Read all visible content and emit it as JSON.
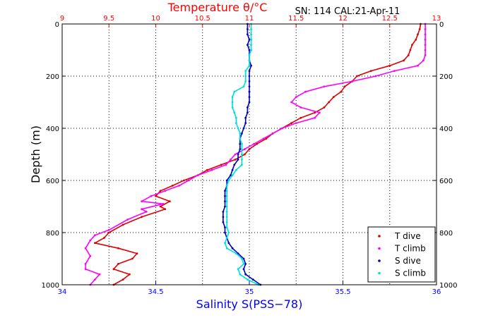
{
  "chart_data": {
    "type": "line",
    "header_info": "SN: 114  CAL:21-Apr-11",
    "temperature_axis": {
      "title": "Temperature θ/°C",
      "min": 9,
      "max": 13,
      "ticks": [
        "9",
        "9.5",
        "10",
        "10.5",
        "11",
        "11.5",
        "12",
        "12.5",
        "13"
      ],
      "color": "#ff0000"
    },
    "salinity_axis": {
      "title": "Salinity S(PSS−78)",
      "min": 34,
      "max": 36,
      "ticks": [
        "34",
        "34.5",
        "35",
        "35.5",
        "36"
      ],
      "color": "#0000ff"
    },
    "depth_axis": {
      "title": "Depth (m)",
      "min": 0,
      "max": 1000,
      "ticks": [
        "0",
        "200",
        "400",
        "600",
        "800",
        "1000"
      ],
      "inverted": true
    },
    "grid": true,
    "legend_position": "bottom-right",
    "series": [
      {
        "name": "T dive",
        "axis": "temperature",
        "color": "#dd0000",
        "marker": "dot",
        "points": [
          [
            12.83,
            0
          ],
          [
            12.82,
            20
          ],
          [
            12.8,
            40
          ],
          [
            12.78,
            60
          ],
          [
            12.74,
            80
          ],
          [
            12.72,
            100
          ],
          [
            12.7,
            120
          ],
          [
            12.65,
            140
          ],
          [
            12.5,
            160
          ],
          [
            12.3,
            180
          ],
          [
            12.15,
            200
          ],
          [
            12.1,
            220
          ],
          [
            12.02,
            240
          ],
          [
            11.98,
            260
          ],
          [
            11.9,
            280
          ],
          [
            11.85,
            300
          ],
          [
            11.8,
            320
          ],
          [
            11.7,
            340
          ],
          [
            11.55,
            360
          ],
          [
            11.45,
            380
          ],
          [
            11.35,
            400
          ],
          [
            11.25,
            420
          ],
          [
            11.18,
            440
          ],
          [
            11.08,
            460
          ],
          [
            11.0,
            480
          ],
          [
            10.95,
            500
          ],
          [
            10.85,
            520
          ],
          [
            10.7,
            540
          ],
          [
            10.55,
            560
          ],
          [
            10.45,
            580
          ],
          [
            10.3,
            600
          ],
          [
            10.18,
            620
          ],
          [
            10.05,
            640
          ],
          [
            10.0,
            660
          ],
          [
            10.15,
            680
          ],
          [
            10.05,
            700
          ],
          [
            10.1,
            710
          ],
          [
            9.85,
            740
          ],
          [
            9.65,
            770
          ],
          [
            9.5,
            800
          ],
          [
            9.45,
            820
          ],
          [
            9.35,
            840
          ],
          [
            9.6,
            860
          ],
          [
            9.8,
            880
          ],
          [
            9.75,
            900
          ],
          [
            9.6,
            920
          ],
          [
            9.55,
            940
          ],
          [
            9.72,
            960
          ],
          [
            9.65,
            980
          ],
          [
            9.55,
            1000
          ]
        ]
      },
      {
        "name": "T climb",
        "axis": "temperature",
        "color": "#ff00ff",
        "marker": "dot",
        "points": [
          [
            12.88,
            0
          ],
          [
            12.88,
            20
          ],
          [
            12.88,
            40
          ],
          [
            12.88,
            60
          ],
          [
            12.88,
            80
          ],
          [
            12.88,
            100
          ],
          [
            12.88,
            120
          ],
          [
            12.86,
            140
          ],
          [
            12.8,
            160
          ],
          [
            12.55,
            180
          ],
          [
            12.35,
            200
          ],
          [
            12.1,
            220
          ],
          [
            11.8,
            240
          ],
          [
            11.6,
            260
          ],
          [
            11.5,
            280
          ],
          [
            11.45,
            300
          ],
          [
            11.55,
            320
          ],
          [
            11.75,
            340
          ],
          [
            11.7,
            360
          ],
          [
            11.5,
            380
          ],
          [
            11.35,
            400
          ],
          [
            11.25,
            420
          ],
          [
            11.15,
            440
          ],
          [
            11.05,
            460
          ],
          [
            10.95,
            480
          ],
          [
            10.85,
            500
          ],
          [
            10.8,
            520
          ],
          [
            10.75,
            540
          ],
          [
            10.6,
            560
          ],
          [
            10.45,
            580
          ],
          [
            10.35,
            600
          ],
          [
            10.25,
            620
          ],
          [
            10.1,
            640
          ],
          [
            9.95,
            660
          ],
          [
            9.85,
            680
          ],
          [
            10.08,
            690
          ],
          [
            9.85,
            710
          ],
          [
            9.9,
            720
          ],
          [
            9.7,
            750
          ],
          [
            9.5,
            790
          ],
          [
            9.35,
            810
          ],
          [
            9.3,
            830
          ],
          [
            9.25,
            860
          ],
          [
            9.3,
            890
          ],
          [
            9.25,
            920
          ],
          [
            9.25,
            940
          ],
          [
            9.4,
            960
          ],
          [
            9.35,
            980
          ],
          [
            9.3,
            1000
          ]
        ]
      },
      {
        "name": "S dive",
        "axis": "salinity",
        "color": "#0000bb",
        "marker": "dot",
        "points": [
          [
            34.99,
            0
          ],
          [
            34.99,
            20
          ],
          [
            34.99,
            40
          ],
          [
            35.0,
            60
          ],
          [
            34.99,
            80
          ],
          [
            35.0,
            100
          ],
          [
            35.0,
            120
          ],
          [
            35.0,
            140
          ],
          [
            35.01,
            160
          ],
          [
            35.0,
            180
          ],
          [
            35.0,
            200
          ],
          [
            35.0,
            220
          ],
          [
            35.0,
            240
          ],
          [
            35.0,
            260
          ],
          [
            35.0,
            280
          ],
          [
            35.0,
            300
          ],
          [
            34.99,
            320
          ],
          [
            34.99,
            340
          ],
          [
            34.98,
            360
          ],
          [
            34.98,
            380
          ],
          [
            34.97,
            400
          ],
          [
            34.96,
            420
          ],
          [
            34.95,
            440
          ],
          [
            34.95,
            460
          ],
          [
            34.95,
            480
          ],
          [
            34.94,
            500
          ],
          [
            34.94,
            520
          ],
          [
            34.92,
            540
          ],
          [
            34.91,
            560
          ],
          [
            34.9,
            580
          ],
          [
            34.88,
            600
          ],
          [
            34.88,
            620
          ],
          [
            34.87,
            640
          ],
          [
            34.87,
            660
          ],
          [
            34.87,
            680
          ],
          [
            34.87,
            700
          ],
          [
            34.86,
            720
          ],
          [
            34.86,
            740
          ],
          [
            34.86,
            760
          ],
          [
            34.87,
            780
          ],
          [
            34.87,
            800
          ],
          [
            34.88,
            820
          ],
          [
            34.89,
            840
          ],
          [
            34.91,
            860
          ],
          [
            34.94,
            880
          ],
          [
            34.97,
            900
          ],
          [
            34.98,
            920
          ],
          [
            34.97,
            940
          ],
          [
            34.98,
            960
          ],
          [
            35.02,
            980
          ],
          [
            35.06,
            1000
          ]
        ]
      },
      {
        "name": "S climb",
        "axis": "salinity",
        "color": "#00dddd",
        "marker": "dot",
        "points": [
          [
            35.01,
            0
          ],
          [
            35.01,
            20
          ],
          [
            35.01,
            40
          ],
          [
            35.01,
            60
          ],
          [
            35.01,
            80
          ],
          [
            35.01,
            100
          ],
          [
            35.0,
            120
          ],
          [
            35.0,
            140
          ],
          [
            35.0,
            160
          ],
          [
            34.98,
            180
          ],
          [
            34.98,
            200
          ],
          [
            34.98,
            220
          ],
          [
            34.97,
            240
          ],
          [
            34.92,
            260
          ],
          [
            34.91,
            280
          ],
          [
            34.91,
            300
          ],
          [
            34.91,
            320
          ],
          [
            34.92,
            340
          ],
          [
            34.93,
            360
          ],
          [
            34.93,
            380
          ],
          [
            34.94,
            400
          ],
          [
            34.95,
            420
          ],
          [
            34.95,
            440
          ],
          [
            34.96,
            460
          ],
          [
            34.96,
            480
          ],
          [
            34.96,
            500
          ],
          [
            34.96,
            520
          ],
          [
            34.96,
            540
          ],
          [
            34.93,
            560
          ],
          [
            34.91,
            580
          ],
          [
            34.89,
            600
          ],
          [
            34.88,
            620
          ],
          [
            34.88,
            640
          ],
          [
            34.88,
            660
          ],
          [
            34.88,
            680
          ],
          [
            34.88,
            700
          ],
          [
            34.88,
            720
          ],
          [
            34.88,
            740
          ],
          [
            34.88,
            760
          ],
          [
            34.88,
            780
          ],
          [
            34.89,
            800
          ],
          [
            34.88,
            820
          ],
          [
            34.87,
            840
          ],
          [
            34.88,
            860
          ],
          [
            34.93,
            880
          ],
          [
            34.96,
            900
          ],
          [
            34.97,
            920
          ],
          [
            34.94,
            940
          ],
          [
            34.95,
            960
          ],
          [
            34.99,
            980
          ],
          [
            35.05,
            1000
          ]
        ]
      }
    ]
  }
}
